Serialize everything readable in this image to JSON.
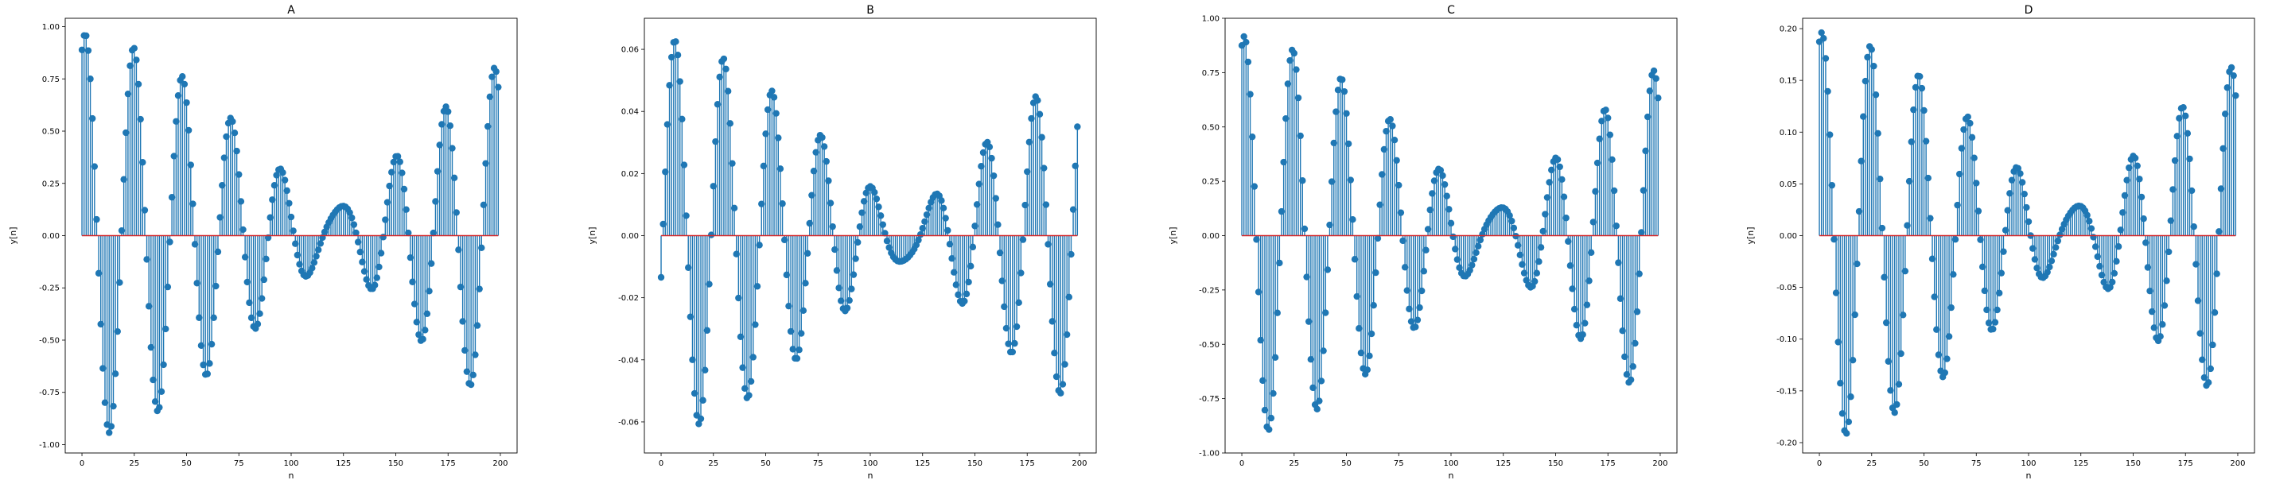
{
  "chart_data": [
    {
      "type": "stem",
      "title": "A",
      "xlabel": "n",
      "ylabel": "y[n]",
      "xlim": [
        -8,
        208
      ],
      "ylim": [
        -1.04,
        1.04
      ],
      "xticks": [
        "0",
        "25",
        "50",
        "75",
        "100",
        "125",
        "150",
        "175",
        "200"
      ],
      "yticks": [
        "-1.00",
        "-0.75",
        "-0.50",
        "-0.25",
        "0.00",
        "0.25",
        "0.50",
        "0.75",
        "1.00"
      ],
      "signal": {
        "n_start": 0,
        "n_end": 199,
        "amp1": 0.55,
        "freq1": 0.26,
        "phase1": 1.1,
        "amp2": 0.42,
        "freq2": 0.285,
        "phase2": 1.25
      },
      "stem_color": "#1f77b4",
      "baseline_color": "#d62728"
    },
    {
      "type": "stem",
      "title": "B",
      "xlabel": "n",
      "ylabel": "y[n]",
      "xlim": [
        -8,
        208
      ],
      "ylim": [
        -0.07,
        0.07
      ],
      "xticks": [
        "0",
        "25",
        "50",
        "75",
        "100",
        "125",
        "150",
        "175",
        "200"
      ],
      "yticks": [
        "-0.06",
        "-0.04",
        "-0.02",
        "0.00",
        "0.02",
        "0.04",
        "0.06"
      ],
      "signal": {
        "n_start": 0,
        "n_end": 199,
        "amp1": 0.036,
        "freq1": 0.26,
        "phase1": -0.3,
        "amp2": 0.028,
        "freq2": 0.285,
        "phase2": -0.1
      },
      "stem_color": "#1f77b4",
      "baseline_color": "#d62728"
    },
    {
      "type": "stem",
      "title": "C",
      "xlabel": "n",
      "ylabel": "y[n]",
      "xlim": [
        -8,
        208
      ],
      "ylim": [
        -1.0,
        1.0
      ],
      "xticks": [
        "0",
        "25",
        "50",
        "75",
        "100",
        "125",
        "150",
        "175",
        "200"
      ],
      "yticks": [
        "-1.00",
        "-0.75",
        "-0.50",
        "-0.25",
        "0.00",
        "0.25",
        "0.50",
        "0.75",
        "1.00"
      ],
      "signal": {
        "n_start": 0,
        "n_end": 199,
        "amp1": 0.52,
        "freq1": 0.26,
        "phase1": 1.2,
        "amp2": 0.4,
        "freq2": 0.285,
        "phase2": 1.35
      },
      "stem_color": "#1f77b4",
      "baseline_color": "#d62728"
    },
    {
      "type": "stem",
      "title": "D",
      "xlabel": "n",
      "ylabel": "y[n]",
      "xlim": [
        -8,
        208
      ],
      "ylim": [
        -0.21,
        0.21
      ],
      "xticks": [
        "0",
        "25",
        "50",
        "75",
        "100",
        "125",
        "150",
        "175",
        "200"
      ],
      "yticks": [
        "-0.20",
        "-0.15",
        "-0.10",
        "-0.05",
        "0.00",
        "0.05",
        "0.10",
        "0.15",
        "0.20"
      ],
      "signal": {
        "n_start": 0,
        "n_end": 199,
        "amp1": 0.112,
        "freq1": 0.26,
        "phase1": 1.2,
        "amp2": 0.085,
        "freq2": 0.285,
        "phase2": 1.35
      },
      "stem_color": "#1f77b4",
      "baseline_color": "#d62728"
    }
  ]
}
